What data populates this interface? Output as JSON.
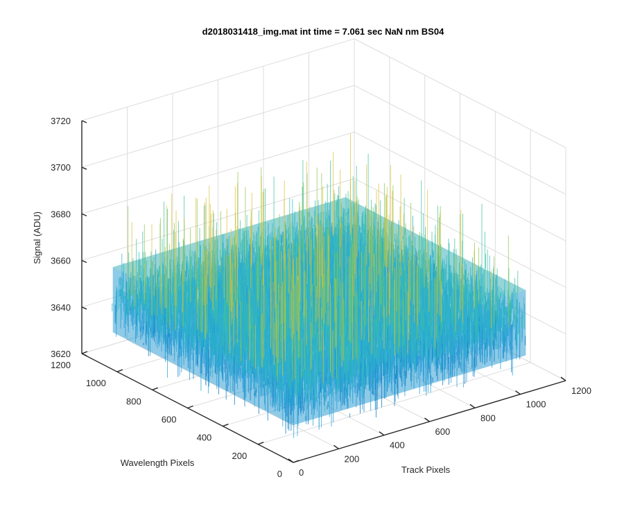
{
  "chart_data": {
    "type": "surface",
    "title": "d2018031418_img.mat int time = 7.061 sec  NaN nm BS04",
    "xlabel": "Track Pixels",
    "ylabel": "Wavelength Pixels",
    "zlabel": "Signal (ADU)",
    "xlim": [
      0,
      1200
    ],
    "ylim": [
      0,
      1200
    ],
    "zlim": [
      3620,
      3720
    ],
    "x_ticks": [
      "0",
      "200",
      "400",
      "600",
      "800",
      "1000",
      "1200"
    ],
    "y_ticks": [
      "0",
      "200",
      "400",
      "600",
      "800",
      "1000",
      "1200"
    ],
    "z_ticks": [
      "3620",
      "3640",
      "3660",
      "3680",
      "3700",
      "3720"
    ],
    "data_extent": {
      "x": [
        0,
        1024
      ],
      "y": [
        0,
        1024
      ]
    },
    "signal_level": {
      "mean": 3650,
      "min": 3628,
      "max": 3695
    },
    "grid": true,
    "colormap": [
      "#0072bd",
      "#1f9ad6",
      "#2bb3c8",
      "#40c0a0",
      "#8fc74e",
      "#d9c03a"
    ]
  }
}
